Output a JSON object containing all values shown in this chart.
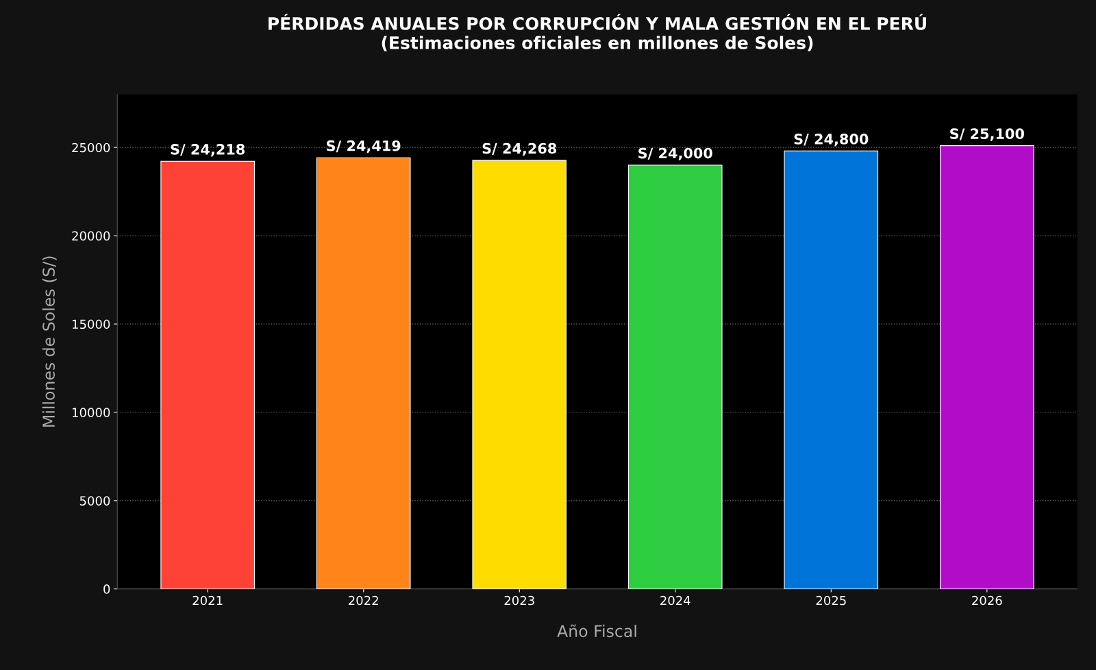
{
  "chart_data": {
    "type": "bar",
    "title": "PÉRDIDAS ANUALES POR CORRUPCIÓN Y MALA GESTIÓN EN EL PERÚ\n(Estimaciones oficiales en millones de Soles)",
    "xlabel": "Año Fiscal",
    "ylabel": "Millones de Soles (S/)",
    "categories": [
      "2021",
      "2022",
      "2023",
      "2024",
      "2025",
      "2026"
    ],
    "values": [
      24218,
      24419,
      24268,
      24000,
      24800,
      25100
    ],
    "value_labels": [
      "S/ 24,218",
      "S/ 24,419",
      "S/ 24,268",
      "S/ 24,000",
      "S/ 24,800",
      "S/ 25,100"
    ],
    "colors": [
      "#ff4136",
      "#ff851b",
      "#ffdc00",
      "#2ecc40",
      "#0074d9",
      "#b10dc9"
    ],
    "ylim": [
      0,
      28000
    ],
    "yticks": [
      0,
      5000,
      10000,
      15000,
      20000,
      25000
    ],
    "grid": "y",
    "legend": false
  }
}
